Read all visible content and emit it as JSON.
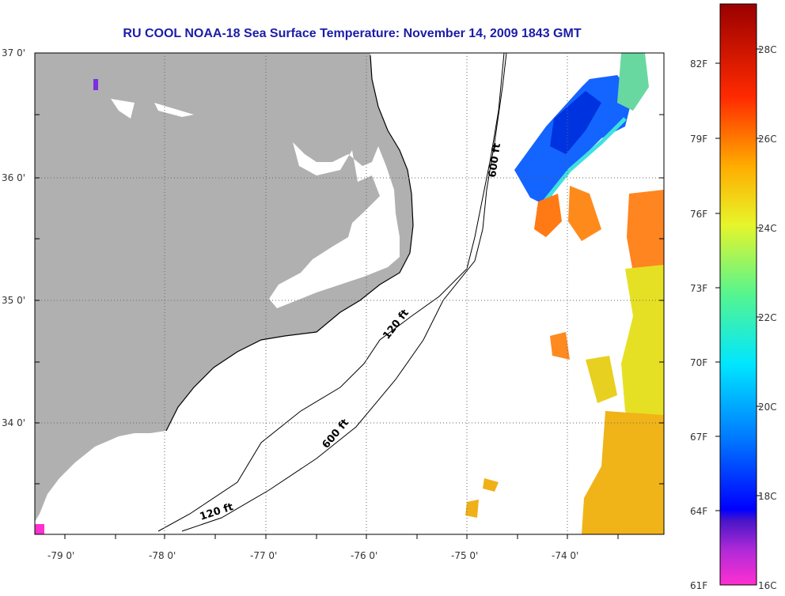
{
  "title": "RU COOL  NOAA-18  Sea Surface Temperature:  November 14, 2009 1843 GMT",
  "lat_labels": [
    "37 0'",
    "36 0'",
    "35 0'",
    "34 0'"
  ],
  "lon_labels": [
    "-79 0'",
    "-78 0'",
    "-77 0'",
    "-76 0'",
    "-75 0'",
    "-74 0'"
  ],
  "contour_labels": [
    "600 ft",
    "120 ft",
    "600 ft",
    "120 ft"
  ],
  "colorbar": {
    "f_labels": [
      "82F",
      "79F",
      "76F",
      "73F",
      "70F",
      "67F",
      "64F",
      "61F"
    ],
    "c_labels": [
      "28C",
      "26C",
      "24C",
      "22C",
      "20C",
      "18C",
      "16C"
    ]
  },
  "colors": {
    "land": "#b0b0b0",
    "title": "#1c1ca8",
    "coast": "#000000"
  }
}
